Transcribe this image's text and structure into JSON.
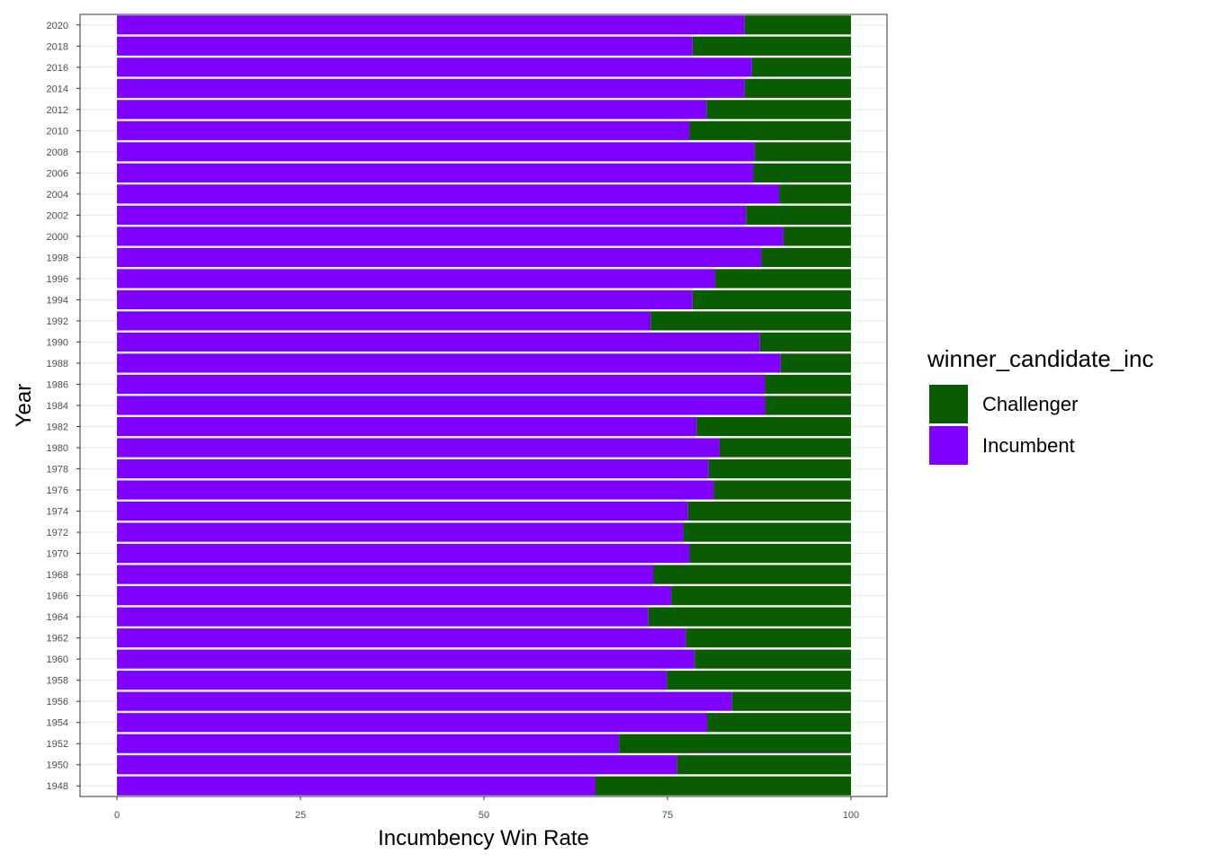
{
  "chart_data": {
    "type": "bar",
    "orientation": "horizontal",
    "stacked": true,
    "xlabel": "Incumbency Win Rate",
    "ylabel": "Year",
    "xlim": [
      0,
      100
    ],
    "x_ticks": [
      0,
      25,
      50,
      75,
      100
    ],
    "grid": true,
    "legend_position": "right",
    "categories": [
      "1948",
      "1950",
      "1952",
      "1954",
      "1956",
      "1958",
      "1960",
      "1962",
      "1964",
      "1966",
      "1968",
      "1970",
      "1972",
      "1974",
      "1976",
      "1978",
      "1980",
      "1982",
      "1984",
      "1986",
      "1988",
      "1990",
      "1992",
      "1994",
      "1996",
      "1998",
      "2000",
      "2002",
      "2004",
      "2006",
      "2008",
      "2010",
      "2012",
      "2014",
      "2016",
      "2018",
      "2020"
    ],
    "series": [
      {
        "name": "Incumbent",
        "color": "#8000ff",
        "values": [
          65.2,
          76.3,
          68.4,
          80.4,
          83.8,
          74.9,
          78.7,
          77.5,
          72.4,
          75.5,
          73.1,
          78.0,
          77.2,
          77.8,
          81.3,
          80.6,
          82.1,
          79.0,
          88.3,
          88.3,
          90.4,
          87.6,
          72.7,
          78.4,
          81.5,
          87.8,
          90.8,
          85.7,
          90.2,
          86.7,
          86.9,
          78.0,
          80.3,
          85.5,
          86.5,
          78.4,
          85.5
        ]
      },
      {
        "name": "Challenger",
        "color": "#0a5c00",
        "values": [
          34.8,
          23.7,
          31.6,
          19.6,
          16.2,
          25.1,
          21.3,
          22.5,
          27.6,
          24.5,
          26.9,
          22.0,
          22.8,
          22.2,
          18.7,
          19.4,
          17.9,
          21.0,
          11.7,
          11.7,
          9.6,
          12.4,
          27.3,
          21.6,
          18.5,
          12.2,
          9.2,
          14.3,
          9.8,
          13.3,
          13.1,
          22.0,
          19.7,
          14.5,
          13.5,
          21.6,
          14.5
        ]
      }
    ],
    "legend": {
      "title": "winner_candidate_inc",
      "entries": [
        "Challenger",
        "Incumbent"
      ]
    }
  }
}
